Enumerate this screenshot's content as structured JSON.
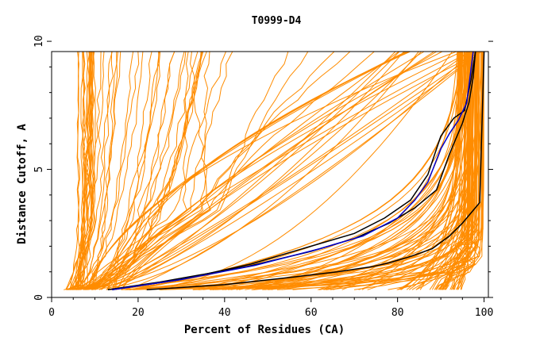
{
  "chart_data": {
    "type": "line",
    "title": "T0999-D4",
    "xlabel": "Percent of Residues (CA)",
    "ylabel": "Distance Cutoff, A",
    "xlim": [
      0,
      101
    ],
    "ylim": [
      0,
      9.6
    ],
    "x_ticks": [
      0,
      20,
      40,
      60,
      80,
      100
    ],
    "y_ticks": [
      0,
      5,
      10
    ],
    "grid": false,
    "legend": "none",
    "colors": {
      "bundle": "#ff8c00",
      "highlight_dark": "#000000",
      "highlight_blue": "#0000cc",
      "axis": "#000000"
    },
    "series": [
      {
        "color": "#000000",
        "x": [
          22,
          40,
          56,
          66,
          74,
          78,
          83,
          88,
          92,
          95,
          97,
          99,
          100
        ],
        "y": [
          0.3,
          0.5,
          0.8,
          1.0,
          1.2,
          1.35,
          1.6,
          1.9,
          2.4,
          2.9,
          3.3,
          3.7,
          9.6
        ]
      },
      {
        "color": "#000000",
        "x": [
          13,
          25,
          45,
          60,
          70,
          78,
          84,
          89,
          92,
          95,
          96.5,
          97.5,
          98
        ],
        "y": [
          0.3,
          0.6,
          1.2,
          1.8,
          2.3,
          2.9,
          3.5,
          4.2,
          5.6,
          6.8,
          7.6,
          8.6,
          9.6
        ]
      },
      {
        "color": "#000000",
        "x": [
          14,
          30,
          46,
          60,
          70,
          77,
          83,
          87,
          90,
          93,
          95.5,
          97,
          98
        ],
        "y": [
          0.3,
          0.7,
          1.3,
          2.0,
          2.5,
          3.1,
          3.8,
          4.8,
          6.3,
          7.0,
          7.3,
          8.5,
          9.6
        ]
      },
      {
        "color": "#0000cc",
        "x": [
          14,
          30,
          47,
          62,
          72,
          80,
          84,
          87,
          90,
          92,
          94,
          96,
          97.5
        ],
        "y": [
          0.3,
          0.7,
          1.25,
          1.9,
          2.4,
          3.1,
          3.8,
          4.5,
          5.8,
          6.4,
          6.9,
          7.6,
          9.6
        ]
      }
    ]
  }
}
